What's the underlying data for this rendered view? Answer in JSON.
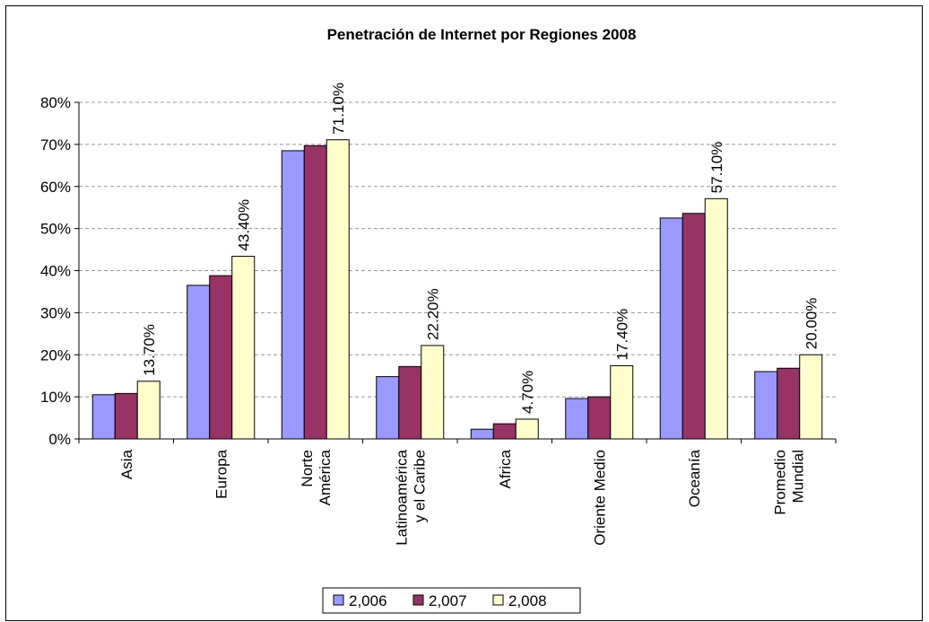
{
  "chart_data": {
    "type": "bar",
    "title": "Penetración de Internet por Regiones 2008",
    "categories": [
      [
        "Asia"
      ],
      [
        "Europa"
      ],
      [
        "Norte",
        "América"
      ],
      [
        "Latinoamérica",
        "y el Caribe"
      ],
      [
        "Africa"
      ],
      [
        "Oriente Medio"
      ],
      [
        "Oceanía"
      ],
      [
        "Promedio",
        "Mundial"
      ]
    ],
    "series": [
      {
        "name": "2,006",
        "color": "#9999FF",
        "values": [
          10.5,
          36.5,
          68.5,
          14.8,
          2.3,
          9.6,
          52.5,
          16.0
        ]
      },
      {
        "name": "2,007",
        "color": "#993366",
        "values": [
          10.8,
          38.8,
          69.7,
          17.2,
          3.6,
          10.0,
          53.6,
          16.8
        ]
      },
      {
        "name": "2,008",
        "color": "#FFFFCC",
        "values": [
          13.7,
          43.4,
          71.1,
          22.2,
          4.7,
          17.4,
          57.1,
          20.0
        ]
      }
    ],
    "data_labels": [
      "13.70%",
      "43.40%",
      "71.10%",
      "22.20%",
      "4.70%",
      "17.40%",
      "57.10%",
      "20.00%"
    ],
    "ylim": [
      0,
      80
    ],
    "yticks": [
      "0%",
      "10%",
      "20%",
      "30%",
      "40%",
      "50%",
      "60%",
      "70%",
      "80%"
    ],
    "grid": "dashed horizontal",
    "legend_position": "bottom"
  }
}
